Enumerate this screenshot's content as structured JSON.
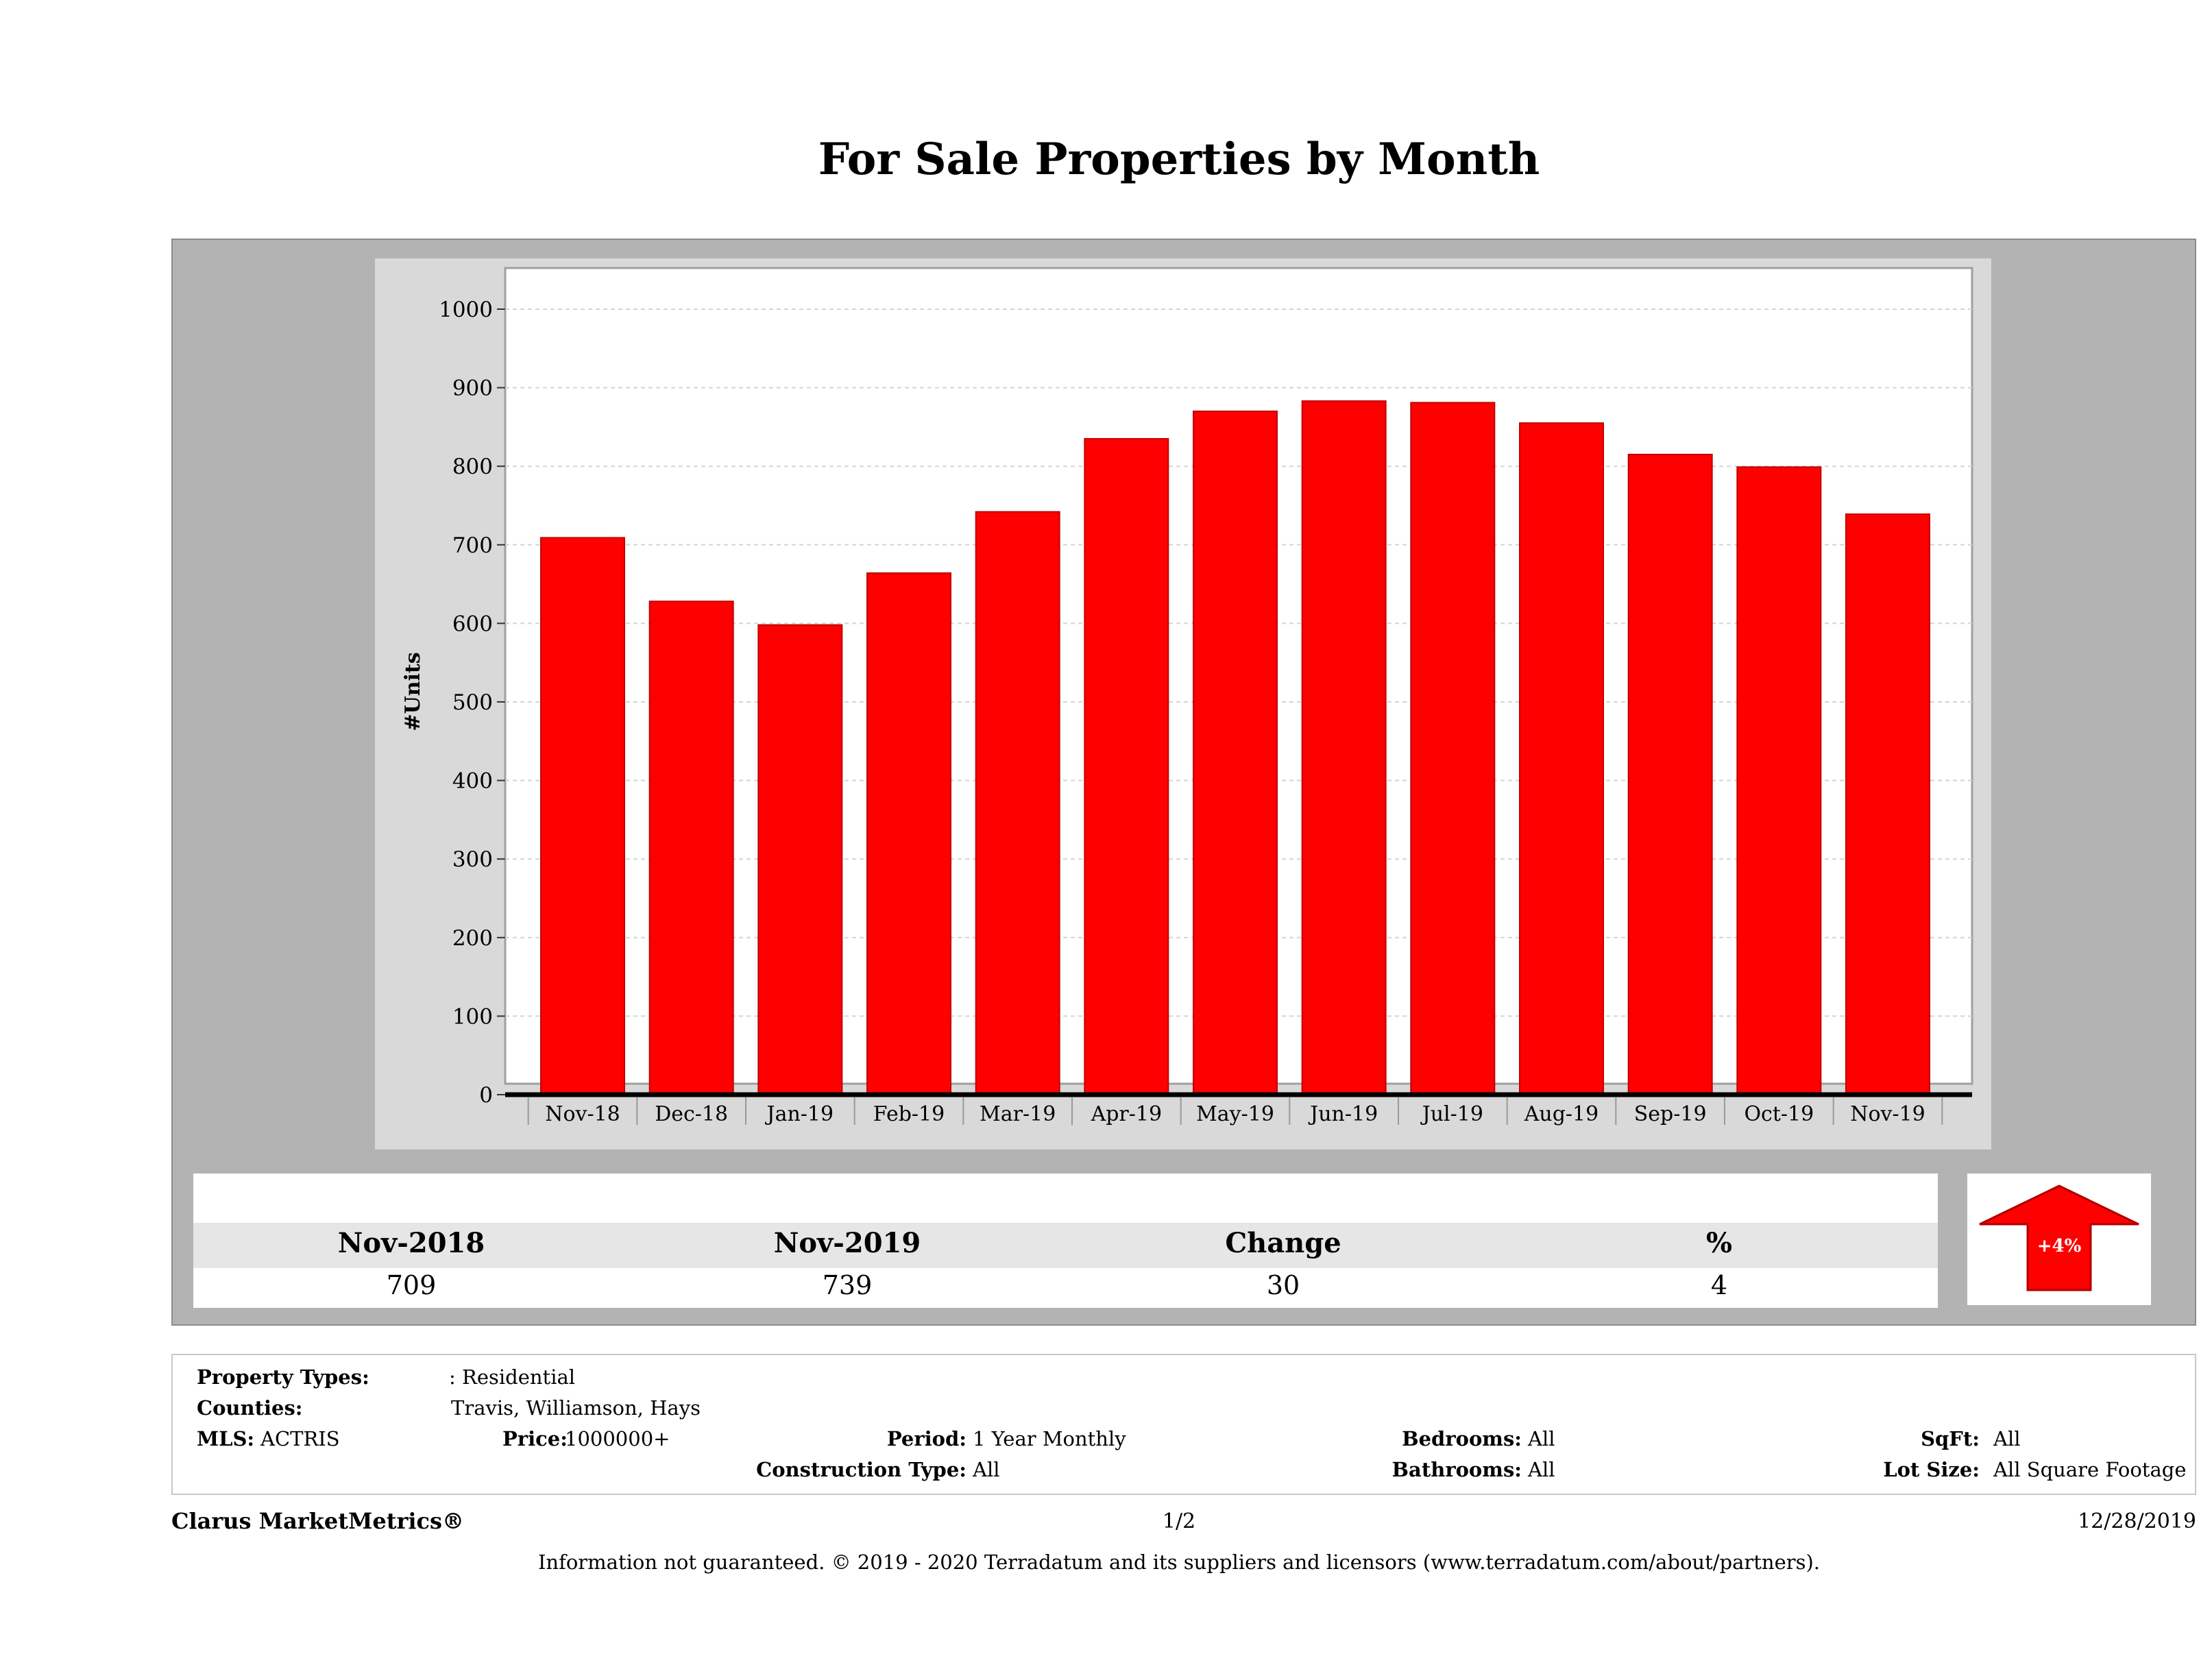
{
  "title": "For Sale Properties by Month",
  "chart_data": {
    "type": "bar",
    "title": "For Sale Properties by Month",
    "ylabel": "#Units",
    "xlabel": "",
    "ylim": [
      0,
      1000
    ],
    "yticks": [
      0,
      100,
      200,
      300,
      400,
      500,
      600,
      700,
      800,
      900,
      1000
    ],
    "categories": [
      "Nov-18",
      "Dec-18",
      "Jan-19",
      "Feb-19",
      "Mar-19",
      "Apr-19",
      "May-19",
      "Jun-19",
      "Jul-19",
      "Aug-19",
      "Sep-19",
      "Oct-19",
      "Nov-19"
    ],
    "values": [
      709,
      628,
      598,
      664,
      742,
      835,
      870,
      883,
      881,
      855,
      815,
      799,
      739
    ],
    "bar_color": "#ff0000",
    "grid": true
  },
  "stats": {
    "col1_label": "Nov-2018",
    "col2_label": "Nov-2019",
    "col3_label": "Change",
    "col4_label": "%",
    "col1_value": "709",
    "col2_value": "739",
    "col3_value": "30",
    "col4_value": "4",
    "arrow_label": "+4%",
    "arrow_color": "#ff0000"
  },
  "filters": {
    "property_types_label": "Property Types:",
    "property_types_value": ": Residential",
    "counties_label": "Counties:",
    "counties_value": "Travis, Williamson, Hays",
    "mls_label": "MLS:",
    "mls_value": "ACTRIS",
    "price_label": "Price:",
    "price_value": "1000000+",
    "period_label": "Period:",
    "period_value": "1 Year Monthly",
    "construction_label": "Construction Type:",
    "construction_value": "All",
    "bedrooms_label": "Bedrooms:",
    "bedrooms_value": "All",
    "bathrooms_label": "Bathrooms:",
    "bathrooms_value": "All",
    "sqft_label": "SqFt:",
    "sqft_value": "All",
    "lotsize_label": "Lot Size:",
    "lotsize_value": "All Square Footage"
  },
  "footer": {
    "brand": "Clarus MarketMetrics®",
    "page": "1/2",
    "date": "12/28/2019",
    "disclaimer": "Information not guaranteed. © 2019 - 2020 Terradatum and its suppliers and licensors (www.terradatum.com/about/partners)."
  }
}
